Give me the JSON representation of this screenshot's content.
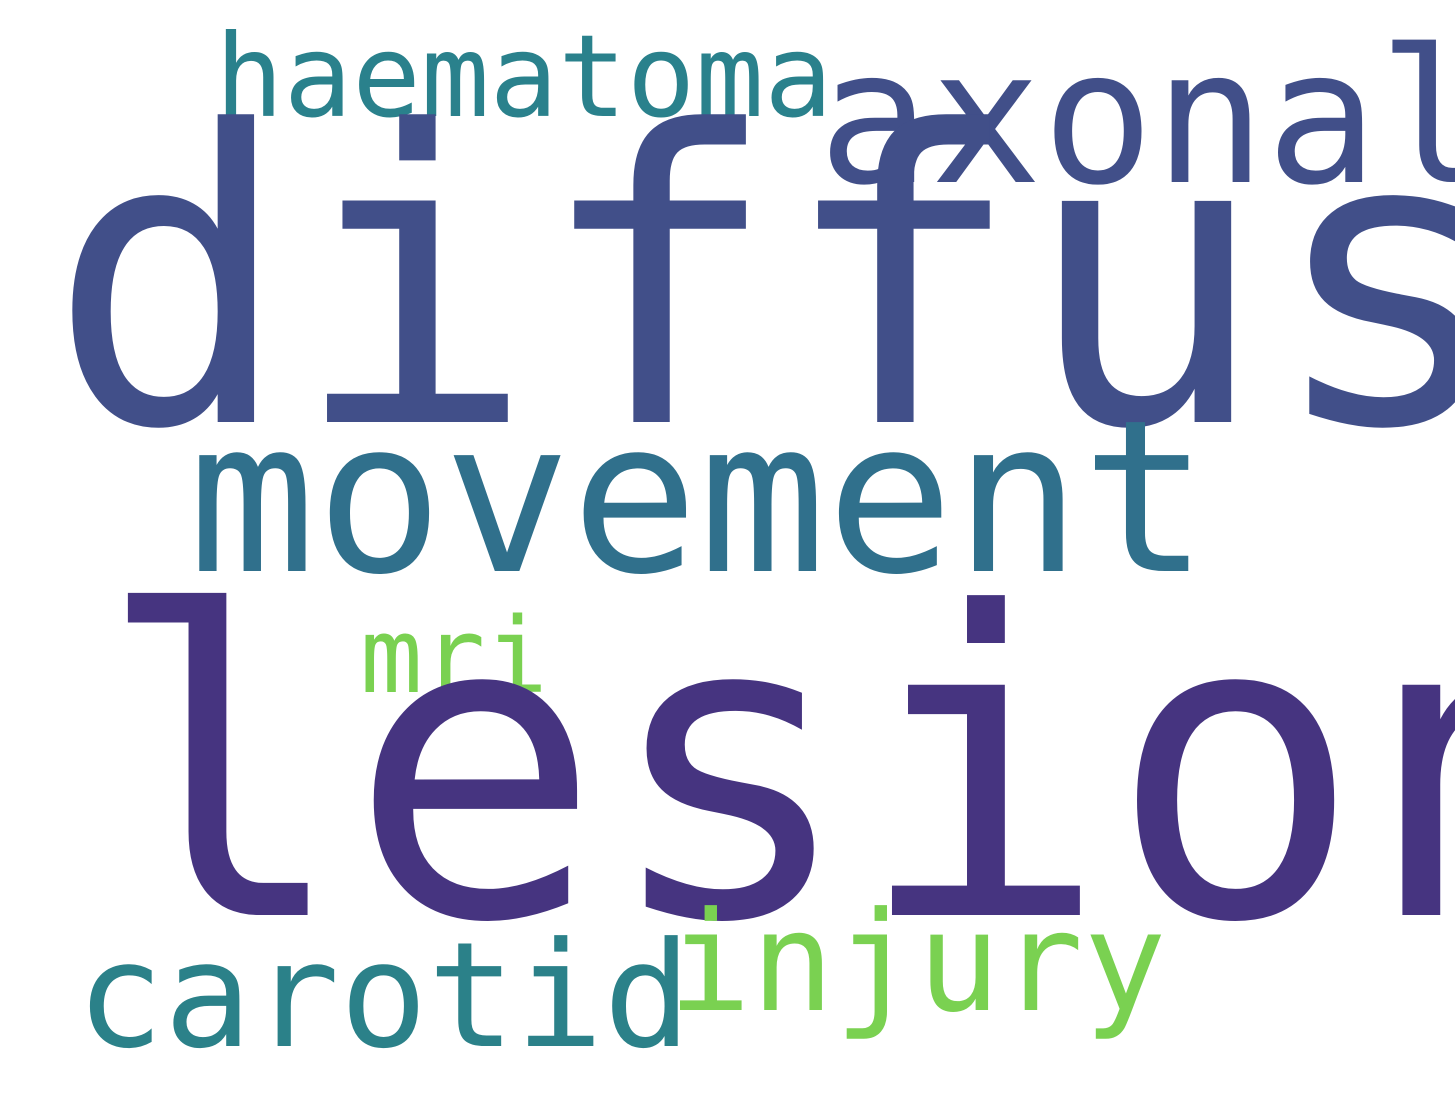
{
  "word_cloud": {
    "words": [
      {
        "id": "diffuse",
        "text": "diffuse",
        "color": "#414f89"
      },
      {
        "id": "lesion",
        "text": "lesion",
        "color": "#463480"
      },
      {
        "id": "movement",
        "text": "movement",
        "color": "#30708c"
      },
      {
        "id": "axonal",
        "text": "axonal",
        "color": "#414f89"
      },
      {
        "id": "haematoma",
        "text": "haematoma",
        "color": "#2a818c"
      },
      {
        "id": "carotid",
        "text": "carotid",
        "color": "#2b8189"
      },
      {
        "id": "injury",
        "text": "injury",
        "color": "#7ad151"
      },
      {
        "id": "mri",
        "text": "mri",
        "color": "#7ad151"
      }
    ]
  }
}
